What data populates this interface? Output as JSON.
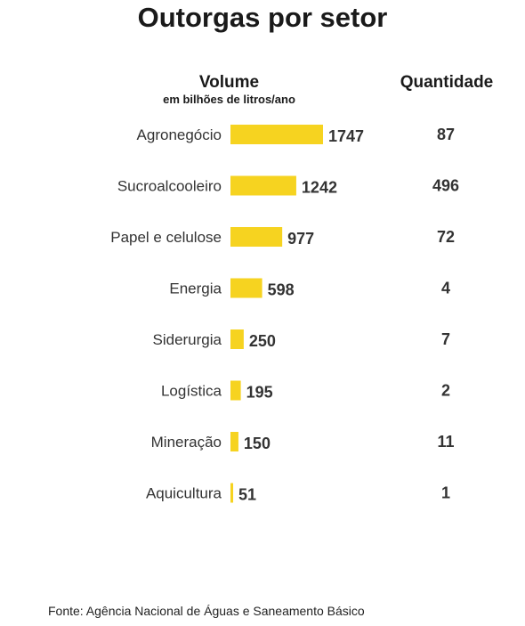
{
  "title": "Outorgas por setor",
  "columns": {
    "volume_label": "Volume",
    "volume_unit": "em bilhões de litros/ano",
    "quantity_label": "Quantidade"
  },
  "source": "Fonte: Agência Nacional de Águas e Saneamento Básico",
  "colors": {
    "bar": "#f6d320",
    "text": "#333333"
  },
  "chart_data": {
    "type": "bar",
    "orientation": "horizontal",
    "categories": [
      "Agronegócio",
      "Sucroalcooleiro",
      "Papel e celulose",
      "Energia",
      "Siderurgia",
      "Logística",
      "Mineração",
      "Aquicultura"
    ],
    "series": [
      {
        "name": "Volume",
        "values": [
          1747,
          1242,
          977,
          598,
          250,
          195,
          150,
          51
        ]
      },
      {
        "name": "Quantidade",
        "values": [
          87,
          496,
          72,
          4,
          7,
          2,
          11,
          1
        ]
      }
    ],
    "grid": false
  }
}
